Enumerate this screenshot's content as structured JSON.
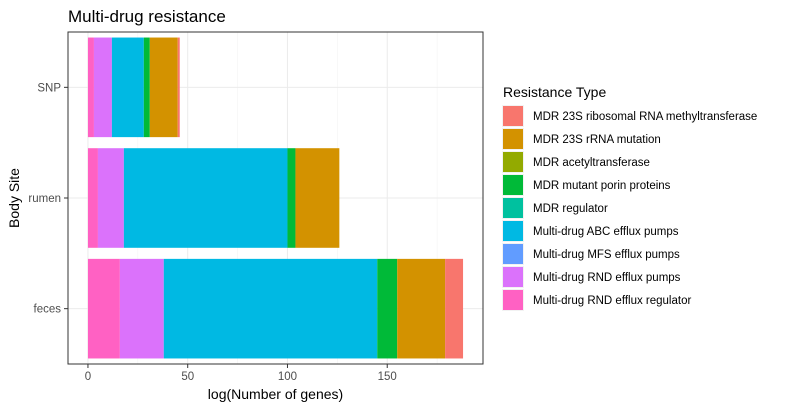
{
  "chart_data": {
    "type": "bar",
    "orientation": "horizontal",
    "stacked": true,
    "title": "Multi-drug resistance",
    "xlabel": "log(Number of genes)",
    "ylabel": "Body Site",
    "xlim": [
      -10,
      198
    ],
    "xticks": [
      0,
      50,
      100,
      150
    ],
    "categories": [
      "SNP",
      "rumen",
      "feces"
    ],
    "grid": true,
    "legend": {
      "title": "Resistance Type",
      "position": "right",
      "entries": [
        {
          "name": "MDR 23S ribosomal RNA methyltransferase",
          "color": "#F8766D"
        },
        {
          "name": "MDR 23S rRNA mutation",
          "color": "#D39200"
        },
        {
          "name": "MDR acetyltransferase",
          "color": "#93AA00"
        },
        {
          "name": "MDR mutant porin proteins",
          "color": "#00BA38"
        },
        {
          "name": "MDR regulator",
          "color": "#00C19F"
        },
        {
          "name": "Multi-drug ABC efflux pumps",
          "color": "#00B9E3"
        },
        {
          "name": "Multi-drug MFS efflux pumps",
          "color": "#619CFF"
        },
        {
          "name": "Multi-drug RND efflux pumps",
          "color": "#DB72FB"
        },
        {
          "name": "Multi-drug RND efflux regulator",
          "color": "#FF61C3"
        }
      ]
    },
    "series": [
      {
        "name": "Multi-drug RND efflux regulator",
        "values": [
          3,
          5,
          16
        ]
      },
      {
        "name": "Multi-drug RND efflux pumps",
        "values": [
          9,
          13,
          22
        ]
      },
      {
        "name": "Multi-drug MFS efflux pumps",
        "values": [
          0,
          0,
          0
        ]
      },
      {
        "name": "Multi-drug ABC efflux pumps",
        "values": [
          16,
          82,
          107
        ]
      },
      {
        "name": "MDR regulator",
        "values": [
          0,
          0,
          0
        ]
      },
      {
        "name": "MDR mutant porin proteins",
        "values": [
          3,
          4,
          10
        ]
      },
      {
        "name": "MDR acetyltransferase",
        "values": [
          0,
          0,
          0
        ]
      },
      {
        "name": "MDR 23S rRNA mutation",
        "values": [
          14,
          22,
          24
        ]
      },
      {
        "name": "MDR 23S ribosomal RNA methyltransferase",
        "values": [
          1,
          0,
          9
        ]
      }
    ]
  }
}
